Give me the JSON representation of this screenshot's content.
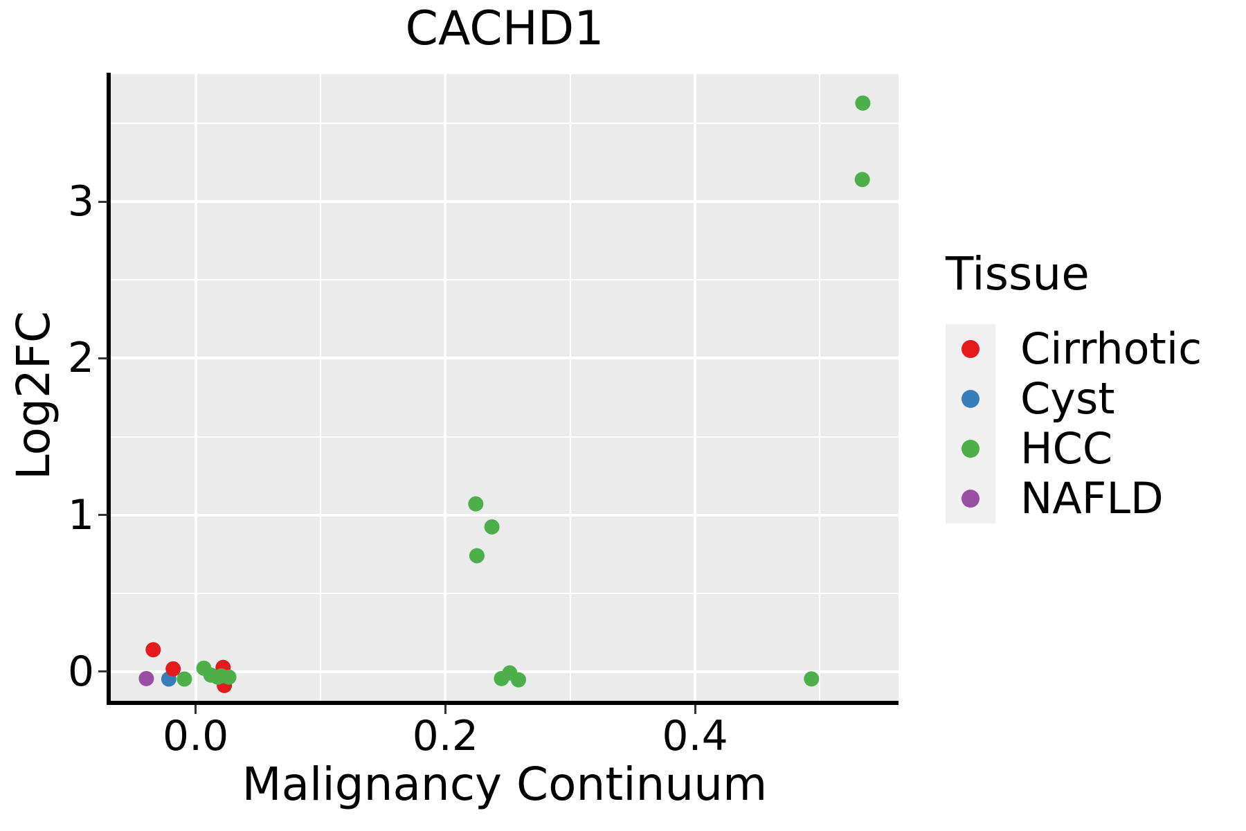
{
  "chart_data": {
    "type": "scatter",
    "title": "CACHD1",
    "xlabel": "Malignancy Continuum",
    "ylabel": "Log2FC",
    "xlim": [
      -0.068,
      0.563
    ],
    "ylim": [
      -0.186,
      3.814
    ],
    "x_ticks": [
      0.0,
      0.2,
      0.4
    ],
    "x_tick_labels": [
      "0.0",
      "0.2",
      "0.4"
    ],
    "x_minor": [
      0.1,
      0.3,
      0.5
    ],
    "y_ticks": [
      0,
      1,
      2,
      3
    ],
    "y_tick_labels": [
      "0",
      "1",
      "2",
      "3"
    ],
    "y_minor": [
      0.5,
      1.5,
      2.5,
      3.5
    ],
    "grid": "on",
    "panel_bg": "#EBEBEB",
    "grid_color": "#FFFFFF",
    "point_radius": 11,
    "legend": {
      "title": "Tissue",
      "position": "right",
      "entries": [
        {
          "label": "Cirrhotic",
          "color": "#E41A1C"
        },
        {
          "label": "Cyst",
          "color": "#377EB8"
        },
        {
          "label": "HCC",
          "color": "#4DAF4A"
        },
        {
          "label": "NAFLD",
          "color": "#984EA3"
        }
      ]
    },
    "series": [
      {
        "name": "Cyst",
        "color": "#377EB8",
        "points": [
          [
            -0.0215,
            -0.047
          ]
        ]
      },
      {
        "name": "Cirrhotic",
        "color": "#E41A1C",
        "points": [
          [
            -0.034,
            0.14
          ],
          [
            -0.018,
            0.018
          ],
          [
            0.022,
            0.027
          ],
          [
            0.023,
            -0.088
          ]
        ]
      },
      {
        "name": "HCC",
        "color": "#4DAF4A",
        "points": [
          [
            -0.009,
            -0.047
          ],
          [
            0.0066,
            0.022
          ],
          [
            0.0122,
            -0.022
          ],
          [
            0.0177,
            -0.035
          ],
          [
            0.0205,
            -0.027
          ],
          [
            0.0266,
            -0.035
          ],
          [
            0.2244,
            1.071
          ],
          [
            0.2373,
            0.924
          ],
          [
            0.2253,
            0.74
          ],
          [
            0.245,
            -0.044
          ],
          [
            0.2516,
            -0.008
          ],
          [
            0.2586,
            -0.052
          ],
          [
            0.4933,
            -0.046
          ],
          [
            0.5344,
            3.629
          ],
          [
            0.534,
            3.141
          ]
        ]
      },
      {
        "name": "NAFLD",
        "color": "#984EA3",
        "points": [
          [
            -0.0395,
            -0.044
          ]
        ]
      }
    ]
  }
}
